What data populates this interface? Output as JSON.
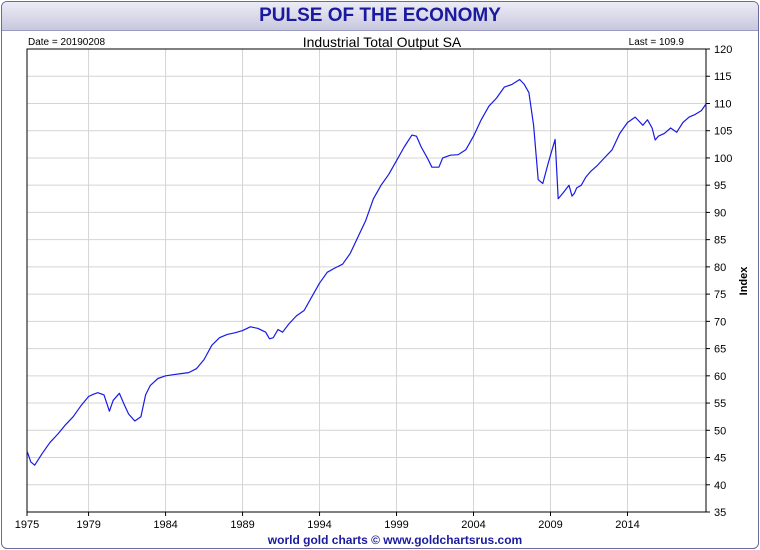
{
  "header": {
    "title": "PULSE OF THE ECONOMY"
  },
  "chart_meta": {
    "date_label": "Date = 20190208",
    "last_label": "Last = 109.9",
    "footer": "world gold charts © www.goldchartsrus.com"
  },
  "colors": {
    "line": "#1a1ae6",
    "title": "#1a1aa0",
    "grid": "#d4d4d4"
  },
  "chart_data": {
    "type": "line",
    "title": "Industrial Total Output SA",
    "xlabel": "",
    "ylabel": "Index",
    "xlim": [
      1975.0,
      2019.1
    ],
    "ylim": [
      35,
      120
    ],
    "x_ticks": [
      1975,
      1979,
      1984,
      1989,
      1994,
      1999,
      2004,
      2009,
      2014
    ],
    "y_ticks": [
      35,
      40,
      45,
      50,
      55,
      60,
      65,
      70,
      75,
      80,
      85,
      90,
      95,
      100,
      105,
      110,
      115,
      120
    ],
    "grid": true,
    "series": [
      {
        "x": [
          1975.0,
          1975.25,
          1975.5,
          1976.0,
          1976.5,
          1977.0,
          1977.5,
          1978.0,
          1978.5,
          1979.0,
          1979.3,
          1979.6,
          1980.0,
          1980.35,
          1980.6,
          1981.0,
          1981.3,
          1981.6,
          1982.0,
          1982.4,
          1982.7,
          1983.0,
          1983.5,
          1984.0,
          1984.5,
          1985.0,
          1985.5,
          1986.0,
          1986.5,
          1987.0,
          1987.5,
          1988.0,
          1988.5,
          1989.0,
          1989.5,
          1990.0,
          1990.5,
          1990.75,
          1991.0,
          1991.3,
          1991.6,
          1992.0,
          1992.5,
          1993.0,
          1993.5,
          1994.0,
          1994.5,
          1995.0,
          1995.5,
          1996.0,
          1996.5,
          1997.0,
          1997.5,
          1998.0,
          1998.5,
          1999.0,
          1999.5,
          2000.0,
          2000.3,
          2000.6,
          2001.0,
          2001.3,
          2001.75,
          2002.0,
          2002.5,
          2003.0,
          2003.5,
          2004.0,
          2004.5,
          2005.0,
          2005.5,
          2006.0,
          2006.5,
          2007.0,
          2007.3,
          2007.6,
          2007.9,
          2008.2,
          2008.5,
          2008.8,
          2009.0,
          2009.3,
          2009.5,
          2009.8,
          2010.2,
          2010.4,
          2010.55,
          2010.7,
          2011.0,
          2011.3,
          2011.6,
          2012.0,
          2012.5,
          2013.0,
          2013.5,
          2014.0,
          2014.5,
          2015.0,
          2015.3,
          2015.6,
          2015.8,
          2016.0,
          2016.4,
          2016.8,
          2017.2,
          2017.6,
          2018.0,
          2018.4,
          2018.8,
          2019.1
        ],
        "y": [
          46.2,
          44.2,
          43.6,
          45.8,
          47.8,
          49.3,
          51.0,
          52.5,
          54.5,
          56.2,
          56.6,
          56.9,
          56.5,
          53.5,
          55.5,
          56.8,
          54.8,
          53.0,
          51.7,
          52.5,
          56.5,
          58.2,
          59.5,
          60.0,
          60.2,
          60.4,
          60.6,
          61.3,
          63.0,
          65.6,
          67.0,
          67.6,
          67.9,
          68.3,
          69.0,
          68.7,
          68.0,
          66.8,
          67.0,
          68.5,
          68.0,
          69.5,
          71.0,
          72.0,
          74.5,
          77.0,
          79.0,
          79.8,
          80.5,
          82.5,
          85.5,
          88.5,
          92.5,
          95.0,
          97.0,
          99.5,
          102.0,
          104.2,
          104.0,
          102.0,
          100.0,
          98.3,
          98.3,
          100.0,
          100.5,
          100.6,
          101.5,
          104.0,
          107.0,
          109.5,
          111.0,
          113.0,
          113.5,
          114.4,
          113.5,
          112.0,
          106.0,
          96.0,
          95.3,
          98.5,
          100.5,
          103.4,
          92.5,
          93.5,
          95.0,
          93.0,
          93.5,
          94.5,
          95.0,
          96.5,
          97.5,
          98.5,
          100.0,
          101.5,
          104.5,
          106.5,
          107.5,
          106.0,
          107.0,
          105.5,
          103.3,
          104.0,
          104.5,
          105.5,
          104.7,
          106.5,
          107.5,
          108.0,
          108.7,
          109.9
        ]
      }
    ]
  }
}
